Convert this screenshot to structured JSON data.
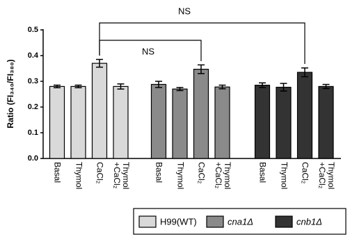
{
  "chart_data": {
    "type": "bar",
    "ylabel": "Ratio (FI₃₄₀/FI₃₈₀)",
    "categories": [
      "Basal",
      "Thymol",
      "CaCl₂",
      "Thymol\n+CaCl₂"
    ],
    "series": [
      {
        "name": "H99(WT)",
        "color": "#d9d9d9",
        "values": [
          0.28,
          0.28,
          0.37,
          0.28
        ],
        "errors": [
          0.005,
          0.005,
          0.015,
          0.01
        ]
      },
      {
        "name": "cna1Δ",
        "color": "#8a8a8a",
        "values": [
          0.288,
          0.27,
          0.347,
          0.278
        ],
        "errors": [
          0.012,
          0.006,
          0.017,
          0.007
        ]
      },
      {
        "name": "cnb1Δ",
        "color": "#333333",
        "values": [
          0.285,
          0.277,
          0.335,
          0.28
        ],
        "errors": [
          0.009,
          0.015,
          0.017,
          0.008
        ]
      }
    ],
    "annotations": [
      "NS",
      "NS"
    ],
    "ylim": [
      0,
      0.5
    ],
    "yticks": [
      {
        "value": 0,
        "label": "0.0"
      },
      0.1,
      0.2,
      0.3,
      0.4,
      0.5
    ]
  }
}
